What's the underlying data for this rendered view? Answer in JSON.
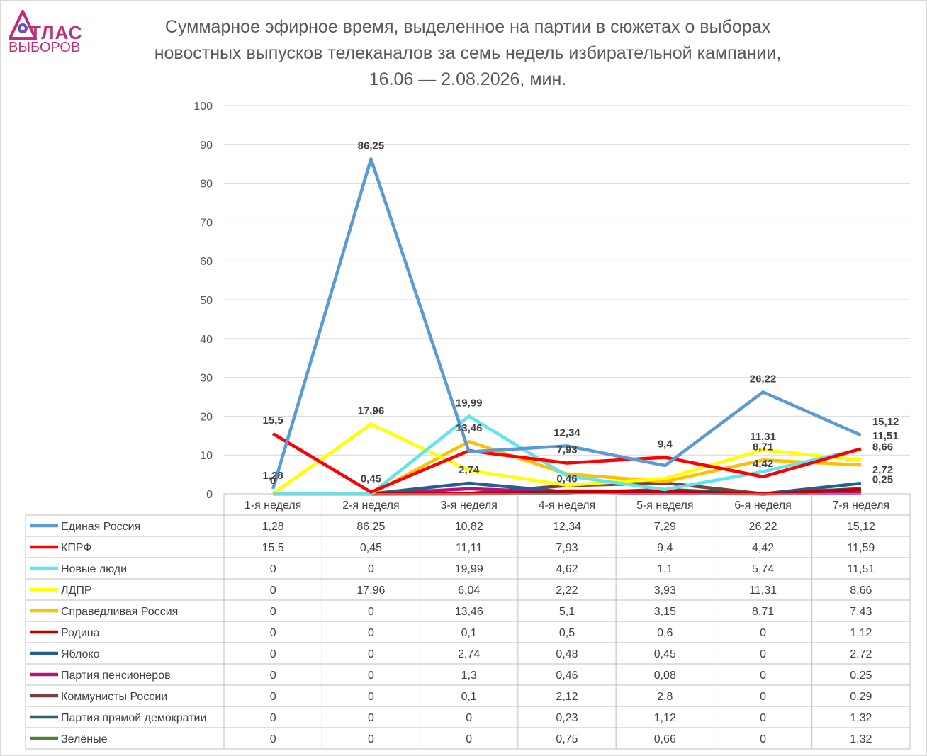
{
  "logo": {
    "line1": "ТЛАС",
    "line2": "ВЫБОРОВ"
  },
  "title": {
    "line1": "Суммарное эфирное время, выделенное на партии в сюжетах о выборах",
    "line2": "новостных выпусков телеканалов за семь недель избирательной кампании,",
    "line3": "16.06 — 2.08.2026, мин."
  },
  "chart_data": {
    "type": "line",
    "title": "Суммарное эфирное время, выделенное на партии в сюжетах о выборах новостных выпусков телеканалов за семь недель избирательной кампании, 16.06 — 2.08.2026, мин.",
    "categories": [
      "1-я неделя",
      "2-я неделя",
      "3-я неделя",
      "4-я неделя",
      "5-я неделя",
      "6-я неделя",
      "7-я неделя"
    ],
    "ylim": [
      0,
      100
    ],
    "yticks": [
      0,
      10,
      20,
      30,
      40,
      50,
      60,
      70,
      80,
      90,
      100
    ],
    "grid": true,
    "legend": "data-table",
    "series": [
      {
        "name": "Единая Россия",
        "color": "#5b9bd5",
        "values": [
          1.28,
          86.25,
          10.82,
          12.34,
          7.29,
          26.22,
          15.12
        ],
        "labels": [
          "1,28",
          "86,25",
          "10,82",
          "12,34",
          "7,29",
          "26,22",
          "15,12"
        ]
      },
      {
        "name": "КПРФ",
        "color": "#ff0000",
        "values": [
          15.5,
          0.45,
          11.11,
          7.93,
          9.4,
          4.42,
          11.59
        ],
        "labels": [
          "15,5",
          "0,45",
          "11,11",
          "7,93",
          "9,4",
          "4,42",
          "11,59"
        ]
      },
      {
        "name": "Новые люди",
        "color": "#5ce6f0",
        "values": [
          0,
          0,
          19.99,
          4.62,
          1.1,
          5.74,
          11.51
        ],
        "labels": [
          "0",
          "0",
          "19,99",
          "4,62",
          "1,1",
          "5,74",
          "11,51"
        ]
      },
      {
        "name": "ЛДПР",
        "color": "#ffff00",
        "values": [
          0,
          17.96,
          6.04,
          2.22,
          3.93,
          11.31,
          8.66
        ],
        "labels": [
          "0",
          "17,96",
          "6,04",
          "2,22",
          "3,93",
          "11,31",
          "8,66"
        ]
      },
      {
        "name": "Справедливая Россия",
        "color": "#ffc000",
        "values": [
          0,
          0,
          13.46,
          5.1,
          3.15,
          8.71,
          7.43
        ],
        "labels": [
          "0",
          "0",
          "13,46",
          "5,1",
          "3,15",
          "8,71",
          "7,43"
        ]
      },
      {
        "name": "Родина",
        "color": "#c00000",
        "values": [
          0,
          0,
          0.1,
          0.5,
          0.6,
          0,
          1.12
        ],
        "labels": [
          "0",
          "0",
          "0,1",
          "0,5",
          "0,6",
          "0",
          "1,12"
        ]
      },
      {
        "name": "Яблоко",
        "color": "#255e91",
        "values": [
          0,
          0,
          2.74,
          0.48,
          0.45,
          0,
          2.72
        ],
        "labels": [
          "0",
          "0",
          "2,74",
          "0,48",
          "0,45",
          "0",
          "2,72"
        ]
      },
      {
        "name": "Партия пенсионеров",
        "color": "#b4127f",
        "values": [
          0,
          0,
          1.3,
          0.46,
          0.08,
          0,
          0.25
        ],
        "labels": [
          "0",
          "0",
          "1,3",
          "0,46",
          "0,08",
          "0",
          "0,25"
        ]
      },
      {
        "name": "Коммунисты России",
        "color": "#7b3f3f",
        "values": [
          0,
          0,
          0.1,
          2.12,
          2.8,
          0,
          0.29
        ],
        "labels": [
          "0",
          "0",
          "0,1",
          "2,12",
          "2,8",
          "0",
          "0,29"
        ]
      },
      {
        "name": "Партия прямой демократии",
        "color": "#2f5f6b",
        "values": [
          0,
          0,
          0,
          0.23,
          1.12,
          0,
          1.32
        ],
        "labels": [
          "0",
          "0",
          "0",
          "0,23",
          "1,12",
          "0",
          "1,32"
        ]
      },
      {
        "name": "Зелёные",
        "color": "#548235",
        "values": [
          0,
          0,
          0,
          0.75,
          0.66,
          0,
          1.32
        ],
        "labels": [
          "0",
          "0",
          "0",
          "0,75",
          "0,66",
          "0",
          "1,32"
        ]
      }
    ],
    "data_labels": [
      {
        "text": "86,25",
        "series": 0,
        "index": 1
      },
      {
        "text": "26,22",
        "series": 0,
        "index": 5
      },
      {
        "text": "15,12",
        "series": 0,
        "index": 6
      },
      {
        "text": "12,34",
        "series": 0,
        "index": 3
      },
      {
        "text": "9,4",
        "series": 1,
        "index": 4
      },
      {
        "text": "15,5",
        "series": 1,
        "index": 0
      },
      {
        "text": "19,99",
        "series": 2,
        "index": 2
      },
      {
        "text": "17,96",
        "series": 3,
        "index": 1
      },
      {
        "text": "13,46",
        "series": 4,
        "index": 2
      },
      {
        "text": "11,31",
        "series": 3,
        "index": 5
      },
      {
        "text": "7,93",
        "series": 1,
        "index": 3
      },
      {
        "text": "8,71",
        "series": 4,
        "index": 5
      },
      {
        "text": "4,42",
        "series": 1,
        "index": 5
      },
      {
        "text": "11,51",
        "series": 2,
        "index": 6
      },
      {
        "text": "8,66",
        "series": 3,
        "index": 6
      },
      {
        "text": "2,72",
        "series": 6,
        "index": 6
      },
      {
        "text": "0,25",
        "series": 7,
        "index": 6
      },
      {
        "text": "2,74",
        "series": 6,
        "index": 2
      },
      {
        "text": "0,46",
        "series": 7,
        "index": 3
      },
      {
        "text": "0,45",
        "series": 1,
        "index": 1
      },
      {
        "text": "1,28",
        "series": 0,
        "index": 0
      },
      {
        "text": "0",
        "series": 2,
        "index": 0
      }
    ]
  }
}
